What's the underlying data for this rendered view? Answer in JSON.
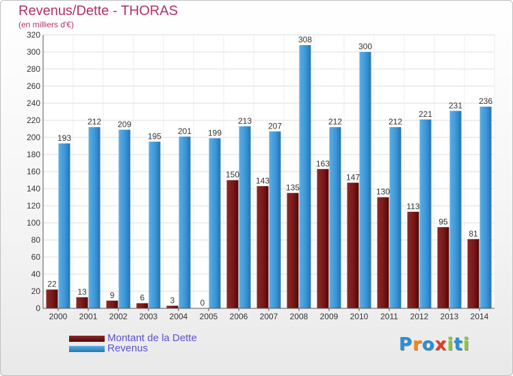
{
  "header": {
    "title": "Revenus/Dette - THORAS",
    "subtitle": "(en milliers d'€)"
  },
  "logo": {
    "text": "Proxiti",
    "letters": [
      "P",
      "r",
      "o",
      "x",
      "i",
      "t",
      "i"
    ],
    "colors": [
      "#2a8fd6",
      "#f08a1c",
      "#2a8fd6",
      "#e23b2a",
      "#8cc63f",
      "#2a8fd6",
      "#8cc63f"
    ]
  },
  "colors": {
    "dette": "#6e1212",
    "revenus": "#3d96d6",
    "title": "#b0306a",
    "legend_text": "#5a4fd0"
  },
  "chart_data": {
    "type": "bar",
    "title": "Revenus/Dette - THORAS",
    "subtitle": "(en milliers d'€)",
    "categories": [
      "2000",
      "2001",
      "2002",
      "2003",
      "2004",
      "2005",
      "2006",
      "2007",
      "2008",
      "2009",
      "2010",
      "2011",
      "2012",
      "2013",
      "2014"
    ],
    "series": [
      {
        "name": "Montant de la Dette",
        "values": [
          22,
          13,
          9,
          6,
          3,
          0,
          150,
          143,
          135,
          163,
          147,
          130,
          113,
          95,
          81
        ]
      },
      {
        "name": "Revenus",
        "values": [
          193,
          212,
          209,
          195,
          201,
          199,
          213,
          207,
          308,
          212,
          300,
          212,
          221,
          231,
          236
        ]
      }
    ],
    "ylim": [
      0,
      320
    ],
    "yticks": [
      0,
      20,
      40,
      60,
      80,
      100,
      120,
      140,
      160,
      180,
      200,
      220,
      240,
      260,
      280,
      300,
      320
    ],
    "grid": true,
    "legend_position": "bottom-left"
  }
}
